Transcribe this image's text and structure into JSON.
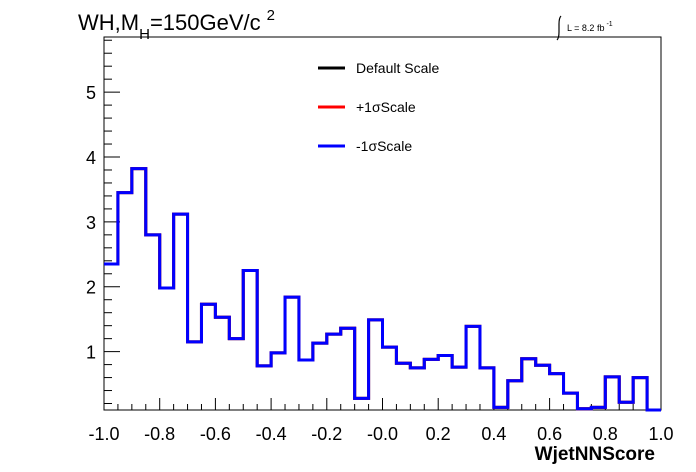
{
  "chart_data": {
    "type": "line",
    "title_main": "WH,M",
    "title_sub": "H",
    "title_rest": "=150GeV/c",
    "title_sup": "2",
    "lumi_main": "L = 8.2 fb",
    "lumi_sup": "-1",
    "xlabel": "WjetNNScore",
    "ylabel": "",
    "xlim": [
      -1.0,
      1.0
    ],
    "ylim": [
      0.1,
      5.85
    ],
    "x_ticks": [
      "-1.0",
      "-0.8",
      "-0.6",
      "-0.4",
      "-0.2",
      "-0.0",
      "0.2",
      "0.4",
      "0.6",
      "0.8",
      "1.0"
    ],
    "x_tick_values": [
      -1.0,
      -0.8,
      -0.6,
      -0.4,
      -0.2,
      0.0,
      0.2,
      0.4,
      0.6,
      0.8,
      1.0
    ],
    "y_ticks": [
      "1",
      "2",
      "3",
      "4",
      "5"
    ],
    "y_tick_values": [
      1,
      2,
      3,
      4,
      5
    ],
    "legend_position": "top-center",
    "bin_edges": [
      -1.0,
      -0.95,
      -0.9,
      -0.85,
      -0.8,
      -0.75,
      -0.7,
      -0.65,
      -0.6,
      -0.55,
      -0.5,
      -0.45,
      -0.4,
      -0.35,
      -0.3,
      -0.25,
      -0.2,
      -0.15,
      -0.1,
      -0.05,
      0.0,
      0.05,
      0.1,
      0.15,
      0.2,
      0.25,
      0.3,
      0.35,
      0.4,
      0.45,
      0.5,
      0.55,
      0.6,
      0.65,
      0.7,
      0.75,
      0.8,
      0.85,
      0.9,
      0.95,
      1.0
    ],
    "series": [
      {
        "name": "Default Scale",
        "color": "#000000",
        "values": [
          2.35,
          3.45,
          3.82,
          2.8,
          1.98,
          3.12,
          1.15,
          1.73,
          1.53,
          1.2,
          2.25,
          0.78,
          0.98,
          1.84,
          0.87,
          1.13,
          1.27,
          1.36,
          0.28,
          1.49,
          1.07,
          0.82,
          0.75,
          0.88,
          0.94,
          0.76,
          1.39,
          0.75,
          0.14,
          0.55,
          0.89,
          0.79,
          0.66,
          0.36,
          0.12,
          0.14,
          0.61,
          0.22,
          0.6,
          0.1
        ]
      },
      {
        "name": "+1σScale",
        "color": "#ff0000",
        "values": [
          2.35,
          3.45,
          3.82,
          2.8,
          1.98,
          3.12,
          1.15,
          1.73,
          1.53,
          1.2,
          2.25,
          0.78,
          0.98,
          1.84,
          0.87,
          1.13,
          1.27,
          1.36,
          0.28,
          1.49,
          1.07,
          0.82,
          0.75,
          0.88,
          0.94,
          0.76,
          1.39,
          0.75,
          0.14,
          0.55,
          0.89,
          0.79,
          0.66,
          0.36,
          0.12,
          0.14,
          0.61,
          0.22,
          0.6,
          0.1
        ]
      },
      {
        "name": "-1σScale",
        "color": "#0000ff",
        "values": [
          2.35,
          3.45,
          3.82,
          2.8,
          1.98,
          3.12,
          1.15,
          1.73,
          1.53,
          1.2,
          2.25,
          0.78,
          0.98,
          1.84,
          0.87,
          1.13,
          1.27,
          1.36,
          0.28,
          1.49,
          1.07,
          0.82,
          0.75,
          0.88,
          0.94,
          0.76,
          1.39,
          0.75,
          0.14,
          0.55,
          0.89,
          0.79,
          0.66,
          0.36,
          0.12,
          0.14,
          0.61,
          0.22,
          0.6,
          0.1
        ]
      }
    ]
  }
}
